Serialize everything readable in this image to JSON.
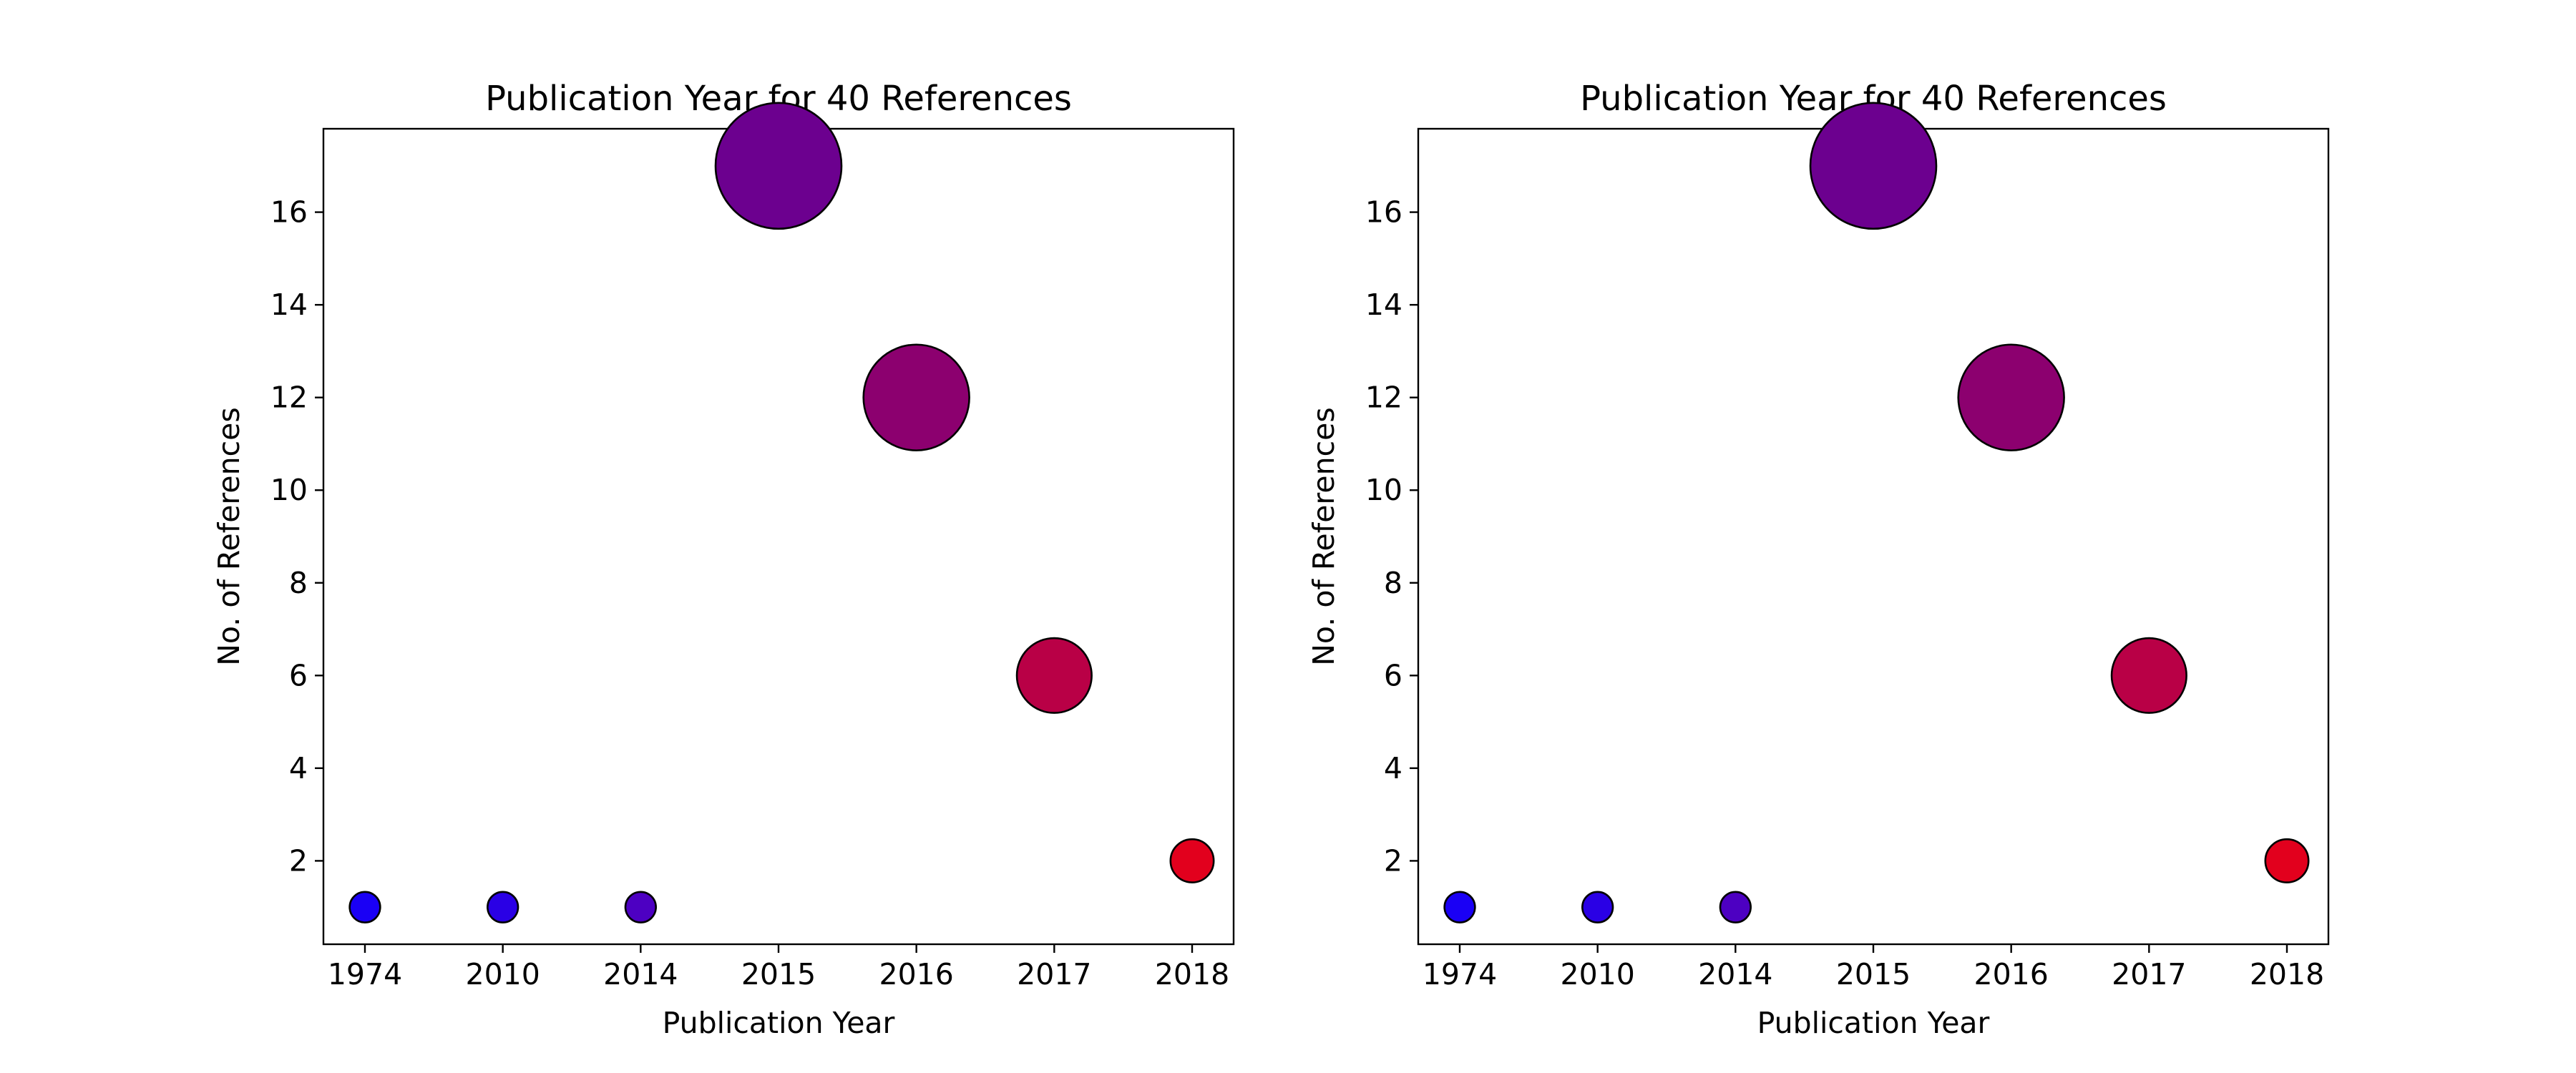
{
  "chart_data": [
    {
      "type": "scatter",
      "title": "Publication Year for 40 References",
      "xlabel": "Publication Year",
      "ylabel": "No. of References",
      "categories": [
        "1974",
        "2010",
        "2014",
        "2015",
        "2016",
        "2017",
        "2018"
      ],
      "values": [
        1,
        1,
        1,
        17,
        12,
        6,
        2
      ],
      "point_colors": [
        "#1a00f5",
        "#2a00e5",
        "#4d00c2",
        "#6c008f",
        "#8c006f",
        "#b90046",
        "#e2001d"
      ],
      "yticks": [
        2,
        4,
        6,
        8,
        10,
        12,
        14,
        16
      ],
      "ylim": [
        0.2,
        17.8
      ],
      "marker_size_encodes": "count",
      "marker_edge_color": "#000000",
      "grid": false,
      "legend": false
    },
    {
      "type": "scatter",
      "title": "Publication Year for 40 References",
      "xlabel": "Publication Year",
      "ylabel": "No. of References",
      "categories": [
        "1974",
        "2010",
        "2014",
        "2015",
        "2016",
        "2017",
        "2018"
      ],
      "values": [
        1,
        1,
        1,
        17,
        12,
        6,
        2
      ],
      "point_colors": [
        "#1a00f5",
        "#2a00e5",
        "#4d00c2",
        "#6c008f",
        "#8c006f",
        "#b90046",
        "#e2001d"
      ],
      "yticks": [
        2,
        4,
        6,
        8,
        10,
        12,
        14,
        16
      ],
      "ylim": [
        0.2,
        17.8
      ],
      "marker_size_encodes": "count",
      "marker_edge_color": "#000000",
      "grid": false,
      "legend": false
    }
  ]
}
